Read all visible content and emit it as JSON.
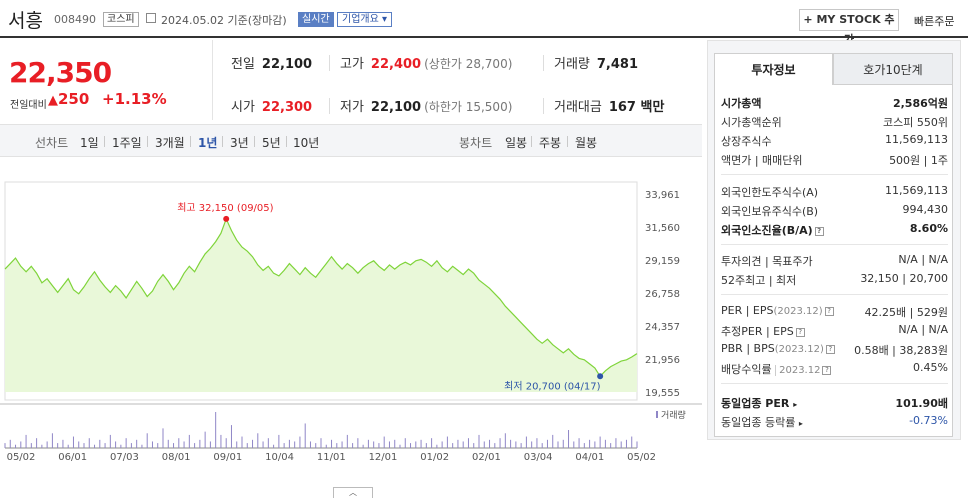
{
  "header": {
    "name": "서흥",
    "code": "008490",
    "market": "코스피",
    "date": "2024.05.02 기준(장마감)",
    "realtime": "실시간",
    "company_info": "기업개요",
    "my_stock": "MY STOCK 추가",
    "quick_order": "빠른주문"
  },
  "price": {
    "current": "22,350",
    "change_label": "전일대비",
    "change": "250",
    "change_pct": "+1.13%"
  },
  "quote": {
    "prev_label": "전일",
    "prev": "22,100",
    "high_label": "고가",
    "high": "22,400",
    "upper": "(상한가 28,700)",
    "volume_label": "거래량",
    "volume": "7,481",
    "open_label": "시가",
    "open": "22,300",
    "low_label": "저가",
    "low": "22,100",
    "lower": "(하한가 15,500)",
    "amount_label": "거래대금",
    "amount": "167 백만"
  },
  "periods": {
    "line_label": "선차트",
    "items": [
      "1일",
      "1주일",
      "3개월",
      "1년",
      "3년",
      "5년",
      "10년"
    ],
    "selected": "1년",
    "candle_label": "봉차트",
    "candle_items": [
      "일봉",
      "주봉",
      "월봉"
    ]
  },
  "chart_data": {
    "type": "area",
    "y_ticks": [
      "33,961",
      "31,560",
      "29,159",
      "26,758",
      "24,357",
      "21,956",
      "19,555"
    ],
    "ylim": [
      19555,
      33961
    ],
    "x_ticks": [
      "05/02",
      "06/01",
      "07/03",
      "08/01",
      "09/01",
      "10/04",
      "11/01",
      "12/01",
      "01/02",
      "02/01",
      "03/04",
      "04/01",
      "05/02"
    ],
    "high_annotation": "최고 32,150 (09/05)",
    "low_annotation": "최저 20,700 (04/17)",
    "volume_legend": "거래량",
    "values": [
      28500,
      28900,
      29300,
      28700,
      28300,
      28700,
      28200,
      27500,
      27800,
      27300,
      26800,
      27300,
      27800,
      27000,
      26700,
      27200,
      27800,
      28300,
      27700,
      27200,
      26800,
      27300,
      26900,
      26400,
      27000,
      27600,
      27100,
      26500,
      26900,
      27600,
      28100,
      27600,
      27000,
      27500,
      28200,
      28700,
      28300,
      29000,
      29600,
      30000,
      30500,
      31100,
      32150,
      31300,
      30600,
      30100,
      29800,
      29400,
      28800,
      28400,
      28700,
      28200,
      28000,
      28400,
      28900,
      28500,
      28100,
      28600,
      28200,
      27900,
      28400,
      28900,
      29400,
      28900,
      28500,
      28900,
      28600,
      28200,
      28600,
      28900,
      29100,
      28700,
      28400,
      28800,
      28500,
      28800,
      29000,
      28800,
      29100,
      29200,
      29000,
      28700,
      29100,
      28600,
      28300,
      28700,
      28400,
      28100,
      28500,
      28200,
      27700,
      27400,
      27100,
      26700,
      26300,
      25800,
      25400,
      25000,
      24600,
      24200,
      23800,
      23400,
      23100,
      23400,
      23000,
      22700,
      22400,
      22700,
      22300,
      22000,
      21900,
      21600,
      21300,
      20700,
      21100,
      21400,
      21600,
      21800,
      21900,
      22100,
      22350
    ],
    "volumes": [
      3,
      5,
      2,
      4,
      8,
      3,
      6,
      2,
      4,
      9,
      3,
      5,
      2,
      7,
      4,
      3,
      6,
      2,
      5,
      3,
      8,
      4,
      2,
      6,
      3,
      5,
      2,
      9,
      4,
      3,
      12,
      5,
      3,
      6,
      4,
      8,
      3,
      5,
      10,
      4,
      22,
      8,
      6,
      14,
      4,
      7,
      3,
      5,
      9,
      4,
      6,
      2,
      8,
      3,
      5,
      4,
      7,
      15,
      4,
      3,
      6,
      2,
      5,
      3,
      4,
      8,
      3,
      6,
      2,
      5,
      4,
      3,
      7,
      4,
      5,
      2,
      6,
      3,
      4,
      5,
      3,
      6,
      2,
      4,
      7,
      3,
      5,
      4,
      6,
      3,
      8,
      4,
      5,
      3,
      6,
      9,
      5,
      4,
      3,
      7,
      4,
      6,
      3,
      5,
      8,
      4,
      5,
      11,
      4,
      6,
      3,
      5,
      4,
      7,
      5,
      3,
      6,
      4,
      5,
      7,
      4
    ]
  },
  "info": {
    "tab_active": "투자정보",
    "tab_other": "호가10단계",
    "market_cap_label": "시가총액",
    "market_cap": "2,586억원",
    "rank_label": "시가총액순위",
    "rank": "코스피 550위",
    "shares_label": "상장주식수",
    "shares": "11,569,113",
    "par_label": "액면가 | 매매단위",
    "par": "500원 | 1주",
    "foreign_limit_label": "외국인한도주식수(A)",
    "foreign_limit": "11,569,113",
    "foreign_hold_label": "외국인보유주식수(B)",
    "foreign_hold": "994,430",
    "foreign_ratio_label": "외국인소진율(B/A)",
    "foreign_ratio": "8.60%",
    "opinion_label": "투자의견 | 목표주가",
    "opinion": "N/A | N/A",
    "w52_label": "52주최고 | 최저",
    "w52": "32,150 | 20,700",
    "per_label": "PER | EPS",
    "per_sub": "(2023.12)",
    "per": "42.25배 | 529원",
    "est_per_label": "추정PER | EPS",
    "est_per": "N/A | N/A",
    "pbr_label": "PBR | BPS",
    "pbr_sub": "(2023.12)",
    "pbr": "0.58배 | 38,283원",
    "div_label": "배당수익률",
    "div_sub": "2023.12",
    "div": "0.45%",
    "sector_per_label": "동일업종 PER",
    "sector_per": "101.90배",
    "sector_chg_label": "동일업종 등락률",
    "sector_chg": "-0.73%"
  },
  "colors": {
    "up": "#e81e25",
    "down": "#2d55a8",
    "line": "#7fd43a",
    "area": "#e9f8d9",
    "volume": "#8f86c7"
  }
}
